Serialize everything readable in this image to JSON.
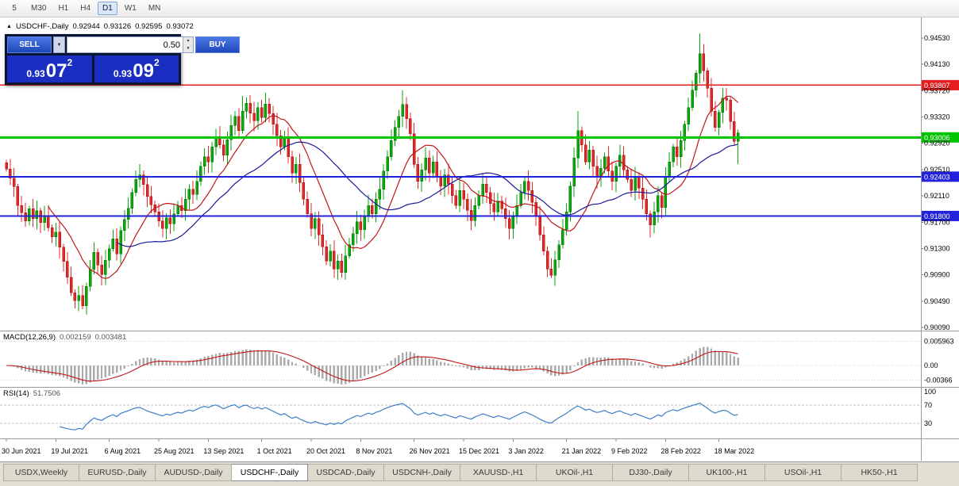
{
  "toolbar": {
    "timeframes": [
      {
        "label": "5",
        "active": false
      },
      {
        "label": "M30",
        "active": false
      },
      {
        "label": "H1",
        "active": false
      },
      {
        "label": "H4",
        "active": false
      },
      {
        "label": "D1",
        "active": true
      },
      {
        "label": "W1",
        "active": false
      },
      {
        "label": "MN",
        "active": false
      }
    ]
  },
  "chart_info": {
    "symbol": "USDCHF-,Daily",
    "open": "0.92944",
    "high": "0.93126",
    "low": "0.92595",
    "close": "0.93072"
  },
  "trade_panel": {
    "sell_label": "SELL",
    "buy_label": "BUY",
    "volume": "0.50",
    "sell_price": {
      "base": "0.93",
      "big": "07",
      "sup": "2"
    },
    "buy_price": {
      "base": "0.93",
      "big": "09",
      "sup": "2"
    }
  },
  "colors": {
    "bull": "#0aa60a",
    "bull_dark": "#067006",
    "bear": "#e02828",
    "bear_dark": "#a01616",
    "ma_fast": "#c01818",
    "ma_slow": "#1a1a99",
    "macd_hist": "#ababab",
    "macd_signal": "#c01818",
    "rsi": "#3c7ec8",
    "hline_red": "#e41e1e",
    "hline_green": "#00c400",
    "hline_blue": "#2222dd",
    "axis_text": "#000000",
    "badge_text": "#ffffff"
  },
  "chart_data": {
    "type": "candlestick",
    "symbol": "USDCHF",
    "timeframe": "Daily",
    "current_ohlc": {
      "open": 0.92944,
      "high": 0.93126,
      "low": 0.92595,
      "close": 0.93072
    },
    "y_ticks": [
      "0.94530",
      "0.94130",
      "0.93720",
      "0.93320",
      "0.92920",
      "0.92510",
      "0.92110",
      "0.91700",
      "0.91300",
      "0.90900",
      "0.90490",
      "0.90090"
    ],
    "hlines": [
      {
        "price": 0.93807,
        "label": "0.93807",
        "color": "#e41e1e",
        "width": 1.5
      },
      {
        "price": 0.93006,
        "label": "0.93006",
        "color": "#00c400",
        "width": 3
      },
      {
        "price": 0.92403,
        "label": "0.92403",
        "color": "#2222dd",
        "width": 2
      },
      {
        "price": 0.918,
        "label": "0.91800",
        "color": "#2222dd",
        "width": 2
      }
    ],
    "x_labels": [
      {
        "label": "30 Jun 2021",
        "i": 0
      },
      {
        "label": "19 Jul 2021",
        "i": 13
      },
      {
        "label": "6 Aug 2021",
        "i": 27
      },
      {
        "label": "25 Aug 2021",
        "i": 40
      },
      {
        "label": "13 Sep 2021",
        "i": 53
      },
      {
        "label": "1 Oct 2021",
        "i": 67
      },
      {
        "label": "20 Oct 2021",
        "i": 80
      },
      {
        "label": "8 Nov 2021",
        "i": 93
      },
      {
        "label": "26 Nov 2021",
        "i": 107
      },
      {
        "label": "15 Dec 2021",
        "i": 120
      },
      {
        "label": "3 Jan 2022",
        "i": 133
      },
      {
        "label": "21 Jan 2022",
        "i": 147
      },
      {
        "label": "9 Feb 2022",
        "i": 160
      },
      {
        "label": "28 Feb 2022",
        "i": 173
      },
      {
        "label": "18 Mar 2022",
        "i": 187
      }
    ],
    "closes": [
      0.9252,
      0.9238,
      0.9225,
      0.9196,
      0.9185,
      0.9172,
      0.9191,
      0.9176,
      0.9188,
      0.917,
      0.9181,
      0.9162,
      0.9148,
      0.9155,
      0.9132,
      0.911,
      0.9086,
      0.9062,
      0.905,
      0.9058,
      0.9042,
      0.9072,
      0.9098,
      0.9124,
      0.9105,
      0.909,
      0.9112,
      0.913,
      0.9145,
      0.9122,
      0.9158,
      0.9175,
      0.9192,
      0.9216,
      0.9236,
      0.9243,
      0.9228,
      0.921,
      0.9197,
      0.9186,
      0.9172,
      0.9161,
      0.9177,
      0.9168,
      0.9183,
      0.9196,
      0.9188,
      0.9206,
      0.9221,
      0.9213,
      0.9233,
      0.9256,
      0.9271,
      0.9263,
      0.9286,
      0.9301,
      0.9289,
      0.9273,
      0.9297,
      0.9319,
      0.9333,
      0.9311,
      0.9341,
      0.9353,
      0.9338,
      0.9326,
      0.9346,
      0.9331,
      0.9352,
      0.9337,
      0.9321,
      0.9303,
      0.9286,
      0.9299,
      0.9271,
      0.9246,
      0.9259,
      0.9231,
      0.9206,
      0.9183,
      0.9161,
      0.9176,
      0.9151,
      0.9133,
      0.9111,
      0.9126,
      0.9099,
      0.9111,
      0.9093,
      0.9119,
      0.9136,
      0.9153,
      0.9171,
      0.9159,
      0.9179,
      0.9196,
      0.9183,
      0.9206,
      0.9221,
      0.9249,
      0.9271,
      0.9296,
      0.9316,
      0.9333,
      0.9351,
      0.9329,
      0.9306,
      0.9259,
      0.9233,
      0.9251,
      0.9269,
      0.9246,
      0.9263,
      0.9239,
      0.9226,
      0.9243,
      0.9229,
      0.9211,
      0.9196,
      0.9219,
      0.9206,
      0.9189,
      0.9173,
      0.9196,
      0.9211,
      0.9229,
      0.9216,
      0.9199,
      0.9186,
      0.9203,
      0.9191,
      0.9176,
      0.9161,
      0.9179,
      0.9196,
      0.9216,
      0.9233,
      0.9219,
      0.9201,
      0.9179,
      0.9151,
      0.9126,
      0.9099,
      0.9089,
      0.9113,
      0.9136,
      0.9159,
      0.9186,
      0.9226,
      0.9269,
      0.9311,
      0.9289,
      0.9263,
      0.9281,
      0.9256,
      0.9239,
      0.9253,
      0.9271,
      0.9249,
      0.9233,
      0.9256,
      0.9273,
      0.9251,
      0.9236,
      0.9219,
      0.9241,
      0.9223,
      0.9206,
      0.9183,
      0.9166,
      0.9186,
      0.9211,
      0.9193,
      0.9239,
      0.9263,
      0.9286,
      0.9271,
      0.9296,
      0.9321,
      0.9346,
      0.9373,
      0.9399,
      0.9429,
      0.9403,
      0.9376,
      0.9341,
      0.9316,
      0.9339,
      0.9361,
      0.9358,
      0.9325,
      0.92944,
      0.93072
    ],
    "wick_overrides": {
      "20": {
        "l": 0.9037
      },
      "62": {
        "h": 0.9364
      },
      "88": {
        "l": 0.9085
      },
      "104": {
        "h": 0.9373
      },
      "143": {
        "l": 0.9085
      },
      "150": {
        "h": 0.9341
      },
      "169": {
        "l": 0.9147
      },
      "182": {
        "h": 0.946
      },
      "192": {
        "o": 0.92944,
        "h": 0.93126,
        "l": 0.92595,
        "c": 0.93072
      }
    },
    "indicators": [
      {
        "name": "MACD(12,26,9)",
        "current_main": "0.002159",
        "current_signal": "0.003481",
        "axis_labels": [
          "0.005963",
          "0.00",
          "-0.00366"
        ]
      },
      {
        "name": "RSI(14)",
        "current": "51.7506",
        "axis_labels": [
          "100",
          "70",
          "30"
        ],
        "levels": [
          70,
          30
        ]
      }
    ]
  },
  "tabs": [
    {
      "label": "USDX,Weekly",
      "active": false
    },
    {
      "label": "EURUSD-,Daily",
      "active": false
    },
    {
      "label": "AUDUSD-,Daily",
      "active": false
    },
    {
      "label": "USDCHF-,Daily",
      "active": true
    },
    {
      "label": "USDCAD-,Daily",
      "active": false
    },
    {
      "label": "USDCNH-,Daily",
      "active": false
    },
    {
      "label": "XAUUSD-,H1",
      "active": false
    },
    {
      "label": "UKOil-,H1",
      "active": false
    },
    {
      "label": "DJ30-,Daily",
      "active": false
    },
    {
      "label": "UK100-,H1",
      "active": false
    },
    {
      "label": "USOil-,H1",
      "active": false
    },
    {
      "label": "HK50-,H1",
      "active": false
    }
  ]
}
